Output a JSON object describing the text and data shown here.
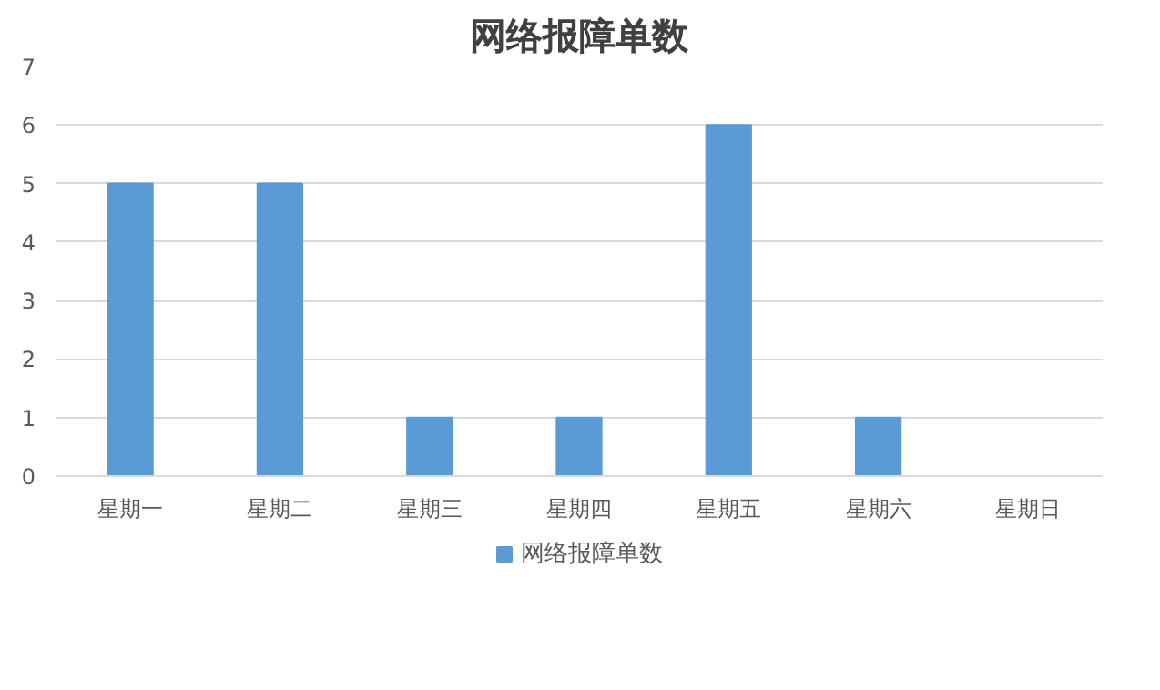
{
  "chart_data": {
    "type": "bar",
    "title": "网络报障单数",
    "categories": [
      "星期一",
      "星期二",
      "星期三",
      "星期四",
      "星期五",
      "星期六",
      "星期日"
    ],
    "series": [
      {
        "name": "网络报障单数",
        "color": "#5b9bd5",
        "values": [
          5,
          5,
          1,
          1,
          6,
          1,
          0
        ]
      }
    ],
    "ylim": [
      0,
      7
    ],
    "yticks": [
      0,
      1,
      2,
      3,
      4,
      5,
      6,
      7
    ],
    "grid": "y",
    "legend": "bottom"
  }
}
